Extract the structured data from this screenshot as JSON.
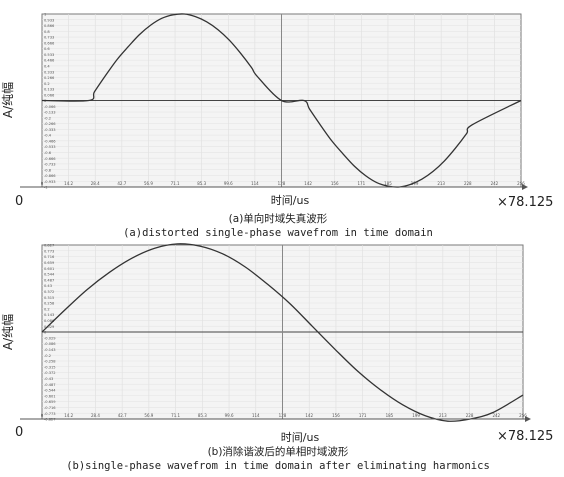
{
  "chart_data": [
    {
      "type": "line",
      "panel_id": "a",
      "caption_cn": "(a)单向时域失真波形",
      "caption_en": "(a)distorted single-phase wavefrom in time domain",
      "ylabel": "A/纯幅",
      "xlabel": "时间/us",
      "x_origin_label": "0",
      "x_multiplier": "×78.125",
      "xlim": [
        0,
        256
      ],
      "ylim": [
        -1.0,
        1.0
      ],
      "x_ticks": [
        "0",
        "14.2",
        "28.4",
        "42.7",
        "56.9",
        "71.1",
        "85.3",
        "99.6",
        "114",
        "128",
        "142",
        "156",
        "171",
        "185",
        "199",
        "213",
        "228",
        "242",
        "256"
      ],
      "y_ticks": [
        "1",
        "0.933",
        "0.866",
        "0.8",
        "0.733",
        "0.666",
        "0.6",
        "0.533",
        "0.466",
        "0.4",
        "0.333",
        "0.266",
        "0.2",
        "0.133",
        "0.066",
        "0",
        "-0.066",
        "-0.133",
        "-0.2",
        "-0.266",
        "-0.333",
        "-0.4",
        "-0.466",
        "-0.533",
        "-0.6",
        "-0.666",
        "-0.733",
        "-0.8",
        "-0.866",
        "-0.933",
        "-1"
      ],
      "series": [
        {
          "x": [
            0,
            25,
            28,
            34,
            40,
            46,
            52,
            58,
            64,
            70,
            76,
            82,
            88,
            94,
            100,
            106,
            112,
            115,
            128,
            140,
            143,
            149,
            155,
            161,
            167,
            173,
            179,
            185,
            191,
            197,
            203,
            209,
            215,
            221,
            227,
            230,
            256
          ],
          "y": [
            0,
            0,
            0.1,
            0.29,
            0.47,
            0.62,
            0.76,
            0.87,
            0.95,
            0.99,
            1.0,
            0.97,
            0.91,
            0.82,
            0.7,
            0.55,
            0.38,
            0.28,
            0,
            0,
            -0.1,
            -0.29,
            -0.47,
            -0.62,
            -0.76,
            -0.87,
            -0.95,
            -0.99,
            -1.0,
            -0.97,
            -0.91,
            -0.82,
            -0.7,
            -0.55,
            -0.38,
            -0.28,
            0
          ]
        }
      ],
      "grid": true,
      "center_divider": true
    },
    {
      "type": "line",
      "panel_id": "b",
      "caption_cn": "(b)消除谐波后的单相时域波形",
      "caption_en": "(b)single-phase wavefrom in time domain after eliminating harmonics",
      "ylabel": "A/纯幅",
      "xlabel": "时间/us",
      "x_origin_label": "0",
      "x_multiplier": "×78.125",
      "xlim": [
        0,
        256
      ],
      "ylim": [
        -0.8,
        0.8
      ],
      "x_ticks": [
        "0",
        "14.2",
        "28.4",
        "42.7",
        "56.9",
        "71.1",
        "85.3",
        "99.6",
        "114",
        "128",
        "142",
        "156",
        "171",
        "185",
        "199",
        "213",
        "228",
        "242",
        "256"
      ],
      "y_ticks": [
        "0.827",
        "0.773",
        "0.716",
        "0.659",
        "0.601",
        "0.544",
        "0.487",
        "0.43",
        "0.372",
        "0.315",
        "0.258",
        "0.2",
        "0.143",
        "0.086",
        "0.029",
        "0",
        "-0.029",
        "-0.086",
        "-0.143",
        "-0.2",
        "-0.258",
        "-0.315",
        "-0.372",
        "-0.43",
        "-0.487",
        "-0.544",
        "-0.601",
        "-0.659",
        "-0.716",
        "-0.773",
        "-0.827"
      ],
      "series": [
        {
          "x": [
            0,
            12,
            24,
            36,
            48,
            60,
            72,
            84,
            96,
            108,
            120,
            132,
            144,
            156,
            168,
            180,
            192,
            204,
            216,
            228,
            240,
            256
          ],
          "y": [
            0,
            0.2,
            0.39,
            0.55,
            0.68,
            0.77,
            0.81,
            0.79,
            0.72,
            0.6,
            0.44,
            0.26,
            0.05,
            -0.16,
            -0.36,
            -0.53,
            -0.67,
            -0.77,
            -0.82,
            -0.8,
            -0.74,
            -0.58
          ]
        }
      ],
      "grid": true,
      "center_divider": true
    }
  ]
}
